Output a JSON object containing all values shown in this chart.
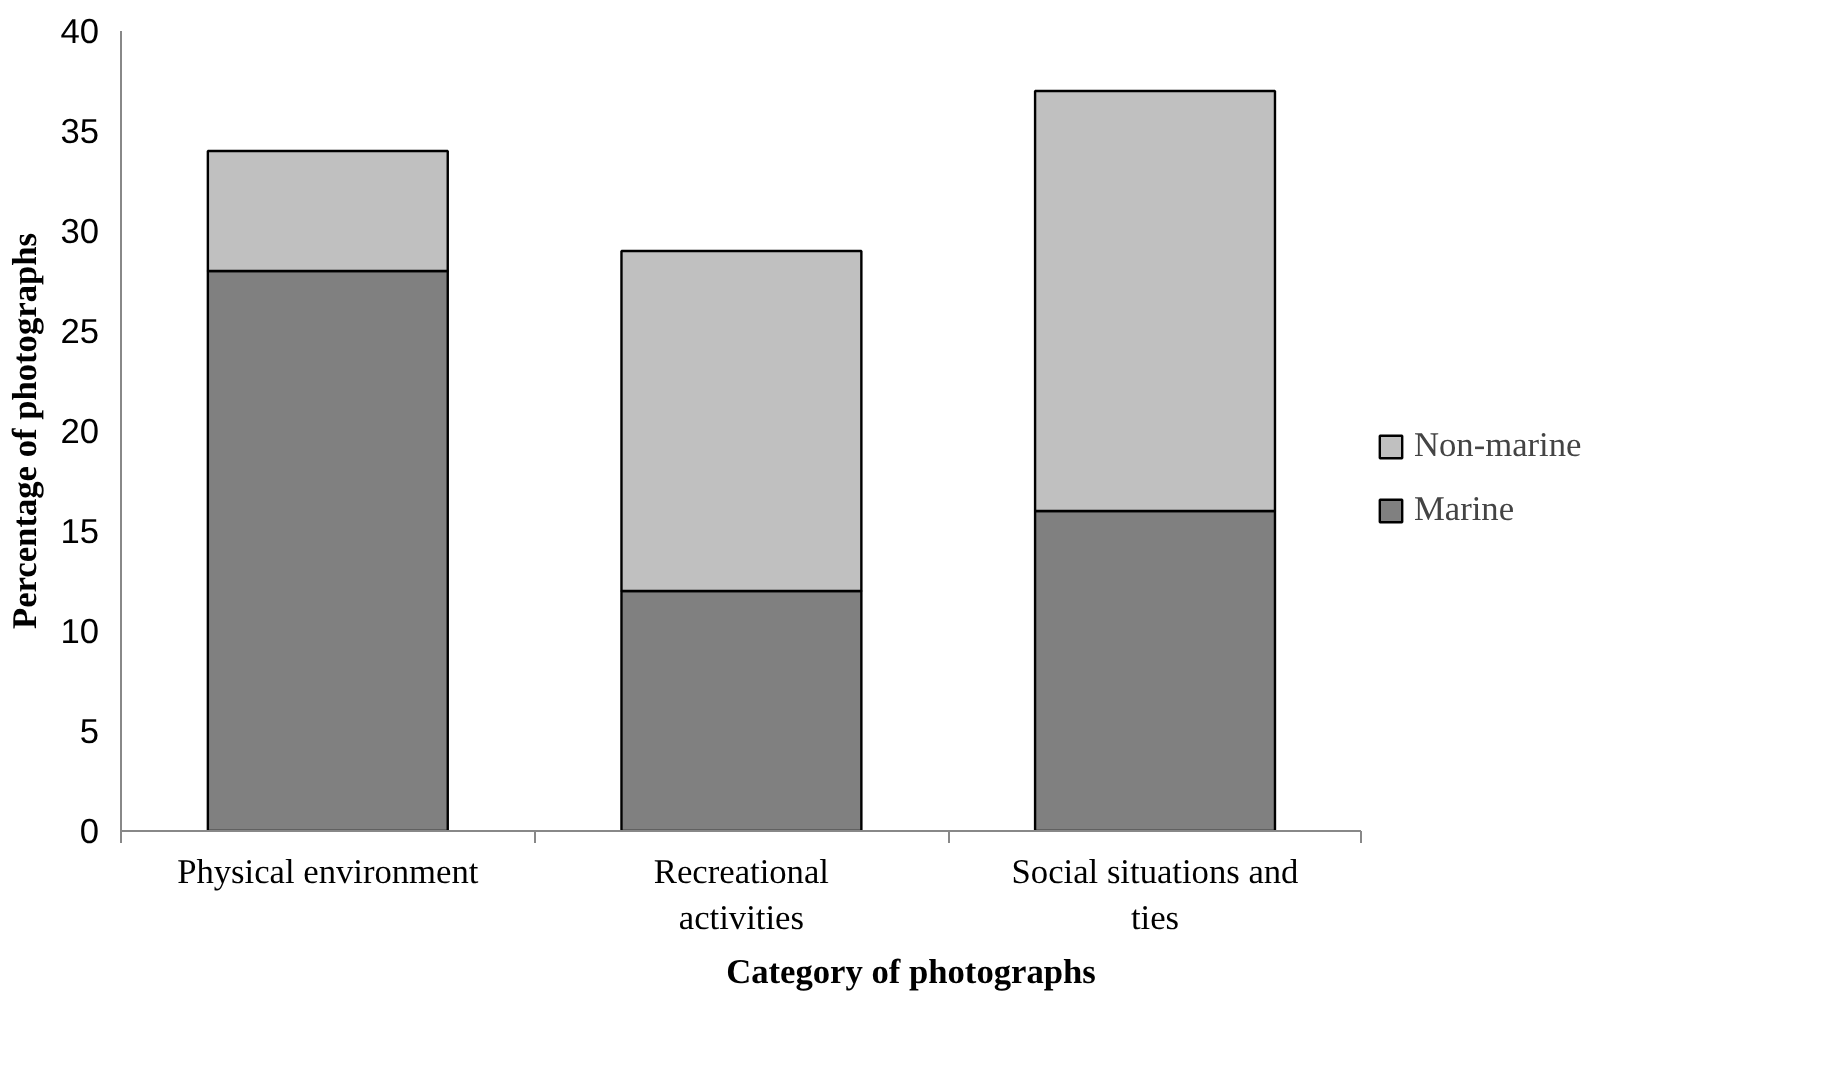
{
  "chart_data": {
    "type": "bar",
    "stacked": true,
    "xlabel": "Category of photographs",
    "ylabel": "Percentage of photographs",
    "categories": [
      "Physical environment",
      "Recreational activities",
      "Social situations and ties"
    ],
    "series": [
      {
        "name": "Marine",
        "color": "#808080",
        "values": [
          28,
          12,
          16
        ]
      },
      {
        "name": "Non-marine",
        "color": "#c0c0c0",
        "values": [
          6,
          17,
          21
        ]
      }
    ],
    "ylim": [
      0,
      40
    ],
    "yticks": [
      0,
      5,
      10,
      15,
      20,
      25,
      30,
      35,
      40
    ],
    "grid": false,
    "legend": "right"
  }
}
